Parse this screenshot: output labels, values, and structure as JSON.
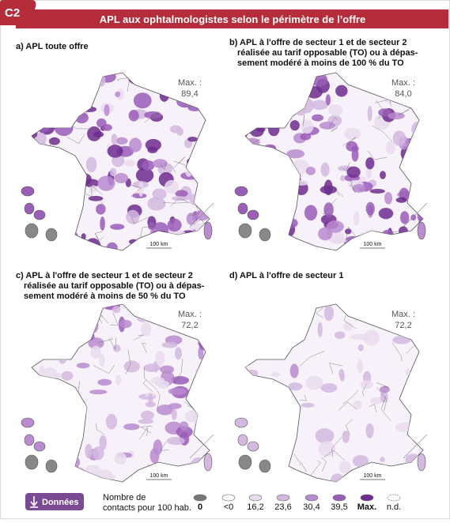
{
  "header": {
    "badge": "C2",
    "title": "APL aux ophtalmologistes selon le périmètre de l’offre"
  },
  "panels": [
    {
      "title": [
        "a) APL toute offre"
      ],
      "max_label": "Max. :",
      "max_value": "89,4",
      "scale": "100 km"
    },
    {
      "title": [
        "b) APL à l'offre de secteur 1 et de secteur 2",
        "réalisée au tarif opposable (TO) ou à dépas-",
        "sement modéré à moins de 100 % du TO"
      ],
      "max_label": "Max. :",
      "max_value": "84,0",
      "scale": "100 km"
    },
    {
      "title": [
        "c) APL à l'offre de secteur 1 et de secteur 2",
        "réalisée au tarif opposable (TO) ou à dépas-",
        "sement modéré à moins de 50 % du TO"
      ],
      "max_label": "Max. :",
      "max_value": "72,2",
      "scale": "100 km"
    },
    {
      "title": [
        "d) APL à l'offre de secteur 1"
      ],
      "max_label": "Max. :",
      "max_value": "72,2",
      "scale": "100 km"
    }
  ],
  "legend": {
    "button": "Données",
    "label": [
      "Nombre de",
      "contacts pour 100 hab."
    ],
    "items": [
      "0",
      "<0",
      "16,2",
      "23,6",
      "30,4",
      "39,5",
      "Max.",
      "n.d."
    ]
  }
}
